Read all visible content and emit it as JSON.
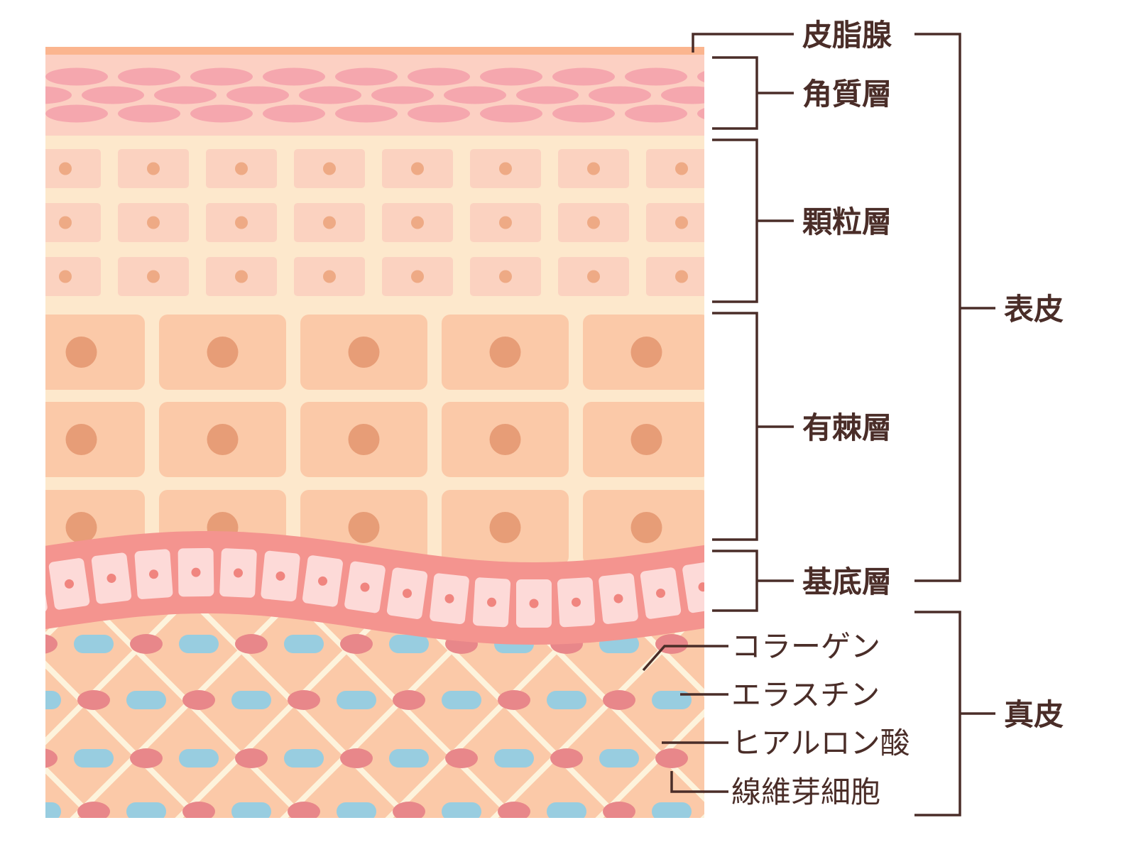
{
  "labels": {
    "sebaceous_gland": "皮脂腺",
    "stratum_corneum": "角質層",
    "stratum_granulosum": "顆粒層",
    "stratum_spinosum": "有棘層",
    "stratum_basale": "基底層",
    "epidermis": "表皮",
    "dermis": "真皮",
    "collagen": "コラーゲン",
    "elastin": "エラスチン",
    "hyaluronic_acid": "ヒアルロン酸",
    "fibroblast": "線維芽細胞"
  },
  "colors": {
    "sebum": "#fbb58f",
    "corneum_bg": "#fcd0c3",
    "corneum_cell": "#f5a7ae",
    "cream_bg": "#fde8cc",
    "granular_cell": "#fbd2c0",
    "granular_nucleus": "#eeaa85",
    "spinous_cell": "#fbc9a8",
    "spinous_nucleus": "#e79d77",
    "basal_band": "#f4948f",
    "basal_cell": "#fddad8",
    "basal_nucleus": "#f0857f",
    "dermis_bg": "#fbc9a8",
    "fiber": "#fdf3dc",
    "elastin": "#98cde0",
    "fibroblast": "#e8878a",
    "line": "#4a2d28"
  }
}
